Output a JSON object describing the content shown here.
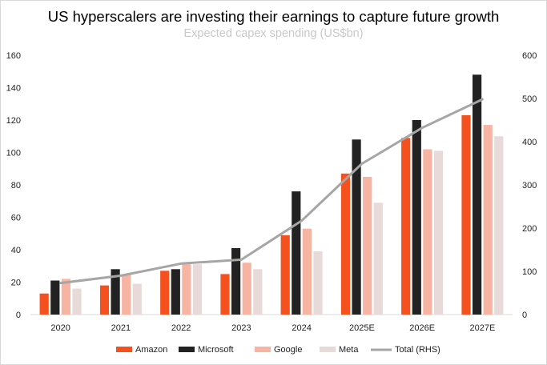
{
  "chart_data": {
    "type": "bar",
    "title": "US hyperscalers are investing their earnings to capture future growth",
    "subtitle": "Expected capex spending (US$bn)",
    "categories": [
      "2020",
      "2021",
      "2022",
      "2023",
      "2024",
      "2025E",
      "2026E",
      "2027E"
    ],
    "series": [
      {
        "name": "Amazon",
        "color": "#f4511e",
        "values": [
          13,
          18,
          27,
          25,
          49,
          87,
          109,
          123
        ]
      },
      {
        "name": "Microsoft",
        "color": "#222222",
        "values": [
          21,
          28,
          28,
          41,
          76,
          108,
          120,
          148
        ]
      },
      {
        "name": "Google",
        "color": "#f8b4a3",
        "values": [
          22,
          25,
          31,
          32,
          53,
          85,
          102,
          117
        ]
      },
      {
        "name": "Meta",
        "color": "#e7dad8",
        "values": [
          16,
          19,
          31,
          28,
          39,
          69,
          101,
          110
        ]
      }
    ],
    "line_series": {
      "name": "Total (RHS)",
      "color": "#a6a6a6",
      "axis": "right",
      "values": [
        73,
        90,
        118,
        127,
        217,
        349,
        432,
        498
      ]
    },
    "ylim": [
      0,
      160
    ],
    "yticks": [
      0,
      20,
      40,
      60,
      80,
      100,
      120,
      140,
      160
    ],
    "y2lim": [
      0,
      600
    ],
    "y2ticks": [
      0,
      100,
      200,
      300,
      400,
      500,
      600
    ],
    "grid": false,
    "legend_position": "bottom"
  }
}
